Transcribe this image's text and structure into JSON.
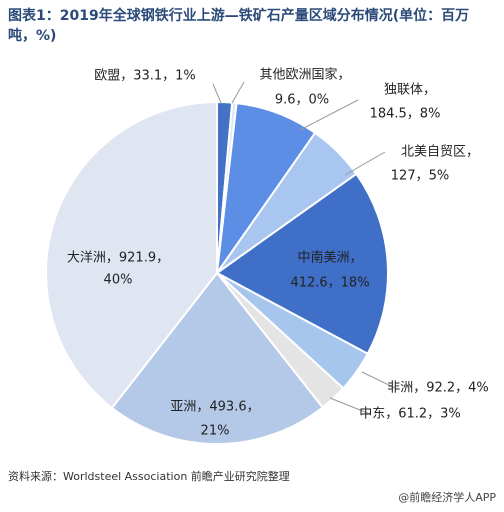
{
  "chart_data": {
    "type": "pie",
    "title": "图表1：2019年全球钢铁行业上游—铁矿石产量区域分布情况(单位：百万吨，%)",
    "categories": [
      "欧盟",
      "其他欧洲国家",
      "独联体",
      "北美自贸区",
      "中南美洲",
      "非洲",
      "中东",
      "亚洲",
      "大洋洲"
    ],
    "values": [
      33.1,
      9.6,
      184.5,
      127,
      412.6,
      92.2,
      61.2,
      493.6,
      921.9
    ],
    "labels": [
      [
        "欧盟，33.1，1%"
      ],
      [
        "其他欧洲国家，",
        "9.6，0%"
      ],
      [
        "独联体，",
        "184.5，8%"
      ],
      [
        "北美自贸区，",
        "127，5%"
      ],
      [
        "中南美洲，",
        "412.6，18%"
      ],
      [
        "非洲，92.2，4%"
      ],
      [
        "中东，61.2，3%"
      ],
      [
        "亚洲，493.6，",
        "21%"
      ],
      [
        "大洋洲，921.9，",
        "40%"
      ]
    ],
    "colors": [
      "#4472c4",
      "#dfe6f2",
      "#5b8ee4",
      "#a9c6f0",
      "#3f6fc6",
      "#a6c6ee",
      "#e4e4e4",
      "#b4c8e8",
      "#dfe6f2"
    ],
    "source": "资料来源：Worldsteel Association 前瞻产业研究院整理",
    "footer": "@前瞻经济学人APP"
  }
}
